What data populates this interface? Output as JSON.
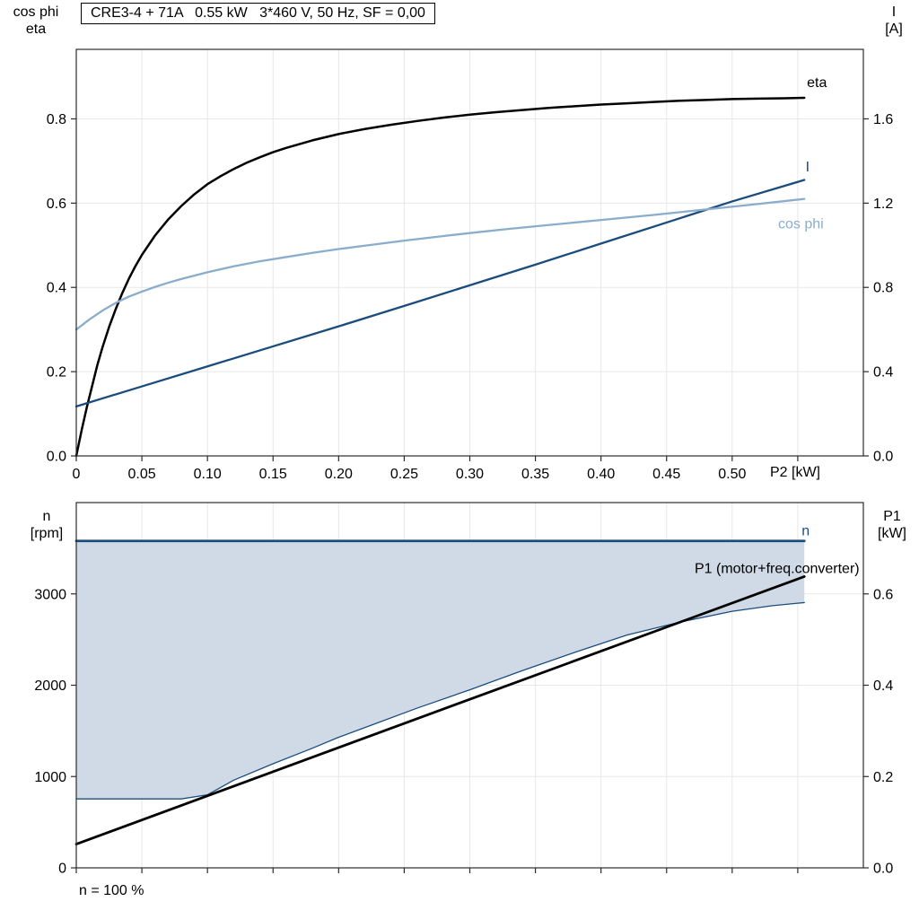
{
  "header": {
    "title_box": "CRE3-4 + 71A   0.55 kW   3*460 V, 50 Hz, SF = 0,00"
  },
  "axis_labels": {
    "top_left_line1": "cos phi",
    "top_left_line2": "eta",
    "top_right_line1": "I",
    "top_right_line2": "[A]",
    "bottom_left_line1": "n",
    "bottom_left_line2": "[rpm]",
    "bottom_right_line1": "P1",
    "bottom_right_line2": "[kW]",
    "x_axis": "P2 [kW]",
    "footnote": "n = 100 %"
  },
  "colors": {
    "black": "#000000",
    "dark_blue": "#1a4d7d",
    "light_blue": "#8aadcc",
    "fill": "#cfdae6",
    "grid": "#e7e7e7",
    "axis": "#2b2b2b"
  },
  "chart_data": [
    {
      "type": "line",
      "title": "CRE3-4 + 71A   0.55 kW   3*460 V, 50 Hz, SF = 0,00",
      "xlabel": "P2 [kW]",
      "xlim": [
        0,
        0.6
      ],
      "grid": true,
      "xticks": [
        {
          "v": 0,
          "label": "0"
        },
        {
          "v": 0.05,
          "label": "0.05"
        },
        {
          "v": 0.1,
          "label": "0.10"
        },
        {
          "v": 0.15,
          "label": "0.15"
        },
        {
          "v": 0.2,
          "label": "0.20"
        },
        {
          "v": 0.25,
          "label": "0.25"
        },
        {
          "v": 0.3,
          "label": "0.30"
        },
        {
          "v": 0.35,
          "label": "0.35"
        },
        {
          "v": 0.4,
          "label": "0.40"
        },
        {
          "v": 0.45,
          "label": "0.45"
        },
        {
          "v": 0.5,
          "label": "0.50"
        },
        {
          "v": 0.55,
          "label": ""
        }
      ],
      "left_axis": {
        "label": "cos phi / eta",
        "lim": [
          0,
          0.965
        ],
        "ticks": [
          {
            "v": 0.0,
            "label": "0.0"
          },
          {
            "v": 0.2,
            "label": "0.2"
          },
          {
            "v": 0.4,
            "label": "0.4"
          },
          {
            "v": 0.6,
            "label": "0.6"
          },
          {
            "v": 0.8,
            "label": "0.8"
          }
        ]
      },
      "right_axis": {
        "label": "I [A]",
        "lim": [
          0,
          1.93
        ],
        "ticks": [
          {
            "v": 0.0,
            "label": "0.0"
          },
          {
            "v": 0.4,
            "label": "0.4"
          },
          {
            "v": 0.8,
            "label": "0.8"
          },
          {
            "v": 1.2,
            "label": "1.2"
          },
          {
            "v": 1.6,
            "label": "1.6"
          }
        ]
      },
      "series": [
        {
          "name": "eta",
          "axis": "left",
          "color": "black",
          "width": 2.5,
          "label": {
            "text": "eta",
            "x": 0.557,
            "y": 0.875,
            "anchor": "start",
            "color": "black"
          },
          "points": [
            [
              0,
              0
            ],
            [
              0.004,
              0.06
            ],
            [
              0.008,
              0.115
            ],
            [
              0.012,
              0.165
            ],
            [
              0.016,
              0.215
            ],
            [
              0.02,
              0.258
            ],
            [
              0.025,
              0.306
            ],
            [
              0.03,
              0.348
            ],
            [
              0.035,
              0.386
            ],
            [
              0.04,
              0.42
            ],
            [
              0.045,
              0.45
            ],
            [
              0.05,
              0.477
            ],
            [
              0.06,
              0.523
            ],
            [
              0.07,
              0.561
            ],
            [
              0.08,
              0.593
            ],
            [
              0.09,
              0.621
            ],
            [
              0.1,
              0.645
            ],
            [
              0.11,
              0.664
            ],
            [
              0.12,
              0.681
            ],
            [
              0.13,
              0.696
            ],
            [
              0.14,
              0.709
            ],
            [
              0.15,
              0.721
            ],
            [
              0.16,
              0.731
            ],
            [
              0.18,
              0.749
            ],
            [
              0.2,
              0.764
            ],
            [
              0.22,
              0.776
            ],
            [
              0.24,
              0.786
            ],
            [
              0.26,
              0.795
            ],
            [
              0.28,
              0.803
            ],
            [
              0.3,
              0.81
            ],
            [
              0.32,
              0.816
            ],
            [
              0.34,
              0.821
            ],
            [
              0.36,
              0.826
            ],
            [
              0.38,
              0.83
            ],
            [
              0.4,
              0.834
            ],
            [
              0.42,
              0.837
            ],
            [
              0.44,
              0.84
            ],
            [
              0.46,
              0.843
            ],
            [
              0.48,
              0.845
            ],
            [
              0.5,
              0.847
            ],
            [
              0.52,
              0.848
            ],
            [
              0.54,
              0.849
            ],
            [
              0.555,
              0.85
            ]
          ]
        },
        {
          "name": "I",
          "axis": "right",
          "color": "dark_blue",
          "width": 2.3,
          "label": {
            "text": "I",
            "x": 0.556,
            "y": 1.35,
            "anchor": "start",
            "color": "dark_blue"
          },
          "points": [
            [
              0,
              0.235
            ],
            [
              0.05,
              0.33
            ],
            [
              0.1,
              0.425
            ],
            [
              0.15,
              0.52
            ],
            [
              0.2,
              0.615
            ],
            [
              0.25,
              0.712
            ],
            [
              0.3,
              0.81
            ],
            [
              0.35,
              0.908
            ],
            [
              0.4,
              1.008
            ],
            [
              0.45,
              1.108
            ],
            [
              0.5,
              1.208
            ],
            [
              0.555,
              1.31
            ]
          ]
        },
        {
          "name": "cos phi",
          "axis": "left",
          "color": "light_blue",
          "width": 2.3,
          "label": {
            "text": "cos phi",
            "x": 0.535,
            "y": 0.54,
            "anchor": "start",
            "color": "light_blue"
          },
          "points": [
            [
              0,
              0.3
            ],
            [
              0.01,
              0.324
            ],
            [
              0.02,
              0.345
            ],
            [
              0.03,
              0.363
            ],
            [
              0.04,
              0.378
            ],
            [
              0.05,
              0.39
            ],
            [
              0.06,
              0.401
            ],
            [
              0.07,
              0.411
            ],
            [
              0.08,
              0.42
            ],
            [
              0.09,
              0.428
            ],
            [
              0.1,
              0.436
            ],
            [
              0.12,
              0.45
            ],
            [
              0.14,
              0.462
            ],
            [
              0.16,
              0.472
            ],
            [
              0.18,
              0.482
            ],
            [
              0.2,
              0.491
            ],
            [
              0.22,
              0.499
            ],
            [
              0.25,
              0.511
            ],
            [
              0.28,
              0.522
            ],
            [
              0.3,
              0.529
            ],
            [
              0.33,
              0.539
            ],
            [
              0.36,
              0.548
            ],
            [
              0.4,
              0.56
            ],
            [
              0.44,
              0.572
            ],
            [
              0.48,
              0.585
            ],
            [
              0.52,
              0.598
            ],
            [
              0.555,
              0.61
            ]
          ]
        }
      ]
    },
    {
      "type": "line",
      "title": "speed range and input power",
      "xlabel": "P2 [kW]",
      "xlim": [
        0,
        0.6
      ],
      "grid": true,
      "xticks": [
        {
          "v": 0,
          "label": ""
        },
        {
          "v": 0.05,
          "label": ""
        },
        {
          "v": 0.1,
          "label": ""
        },
        {
          "v": 0.15,
          "label": ""
        },
        {
          "v": 0.2,
          "label": ""
        },
        {
          "v": 0.25,
          "label": ""
        },
        {
          "v": 0.3,
          "label": ""
        },
        {
          "v": 0.35,
          "label": ""
        },
        {
          "v": 0.4,
          "label": ""
        },
        {
          "v": 0.45,
          "label": ""
        },
        {
          "v": 0.5,
          "label": ""
        },
        {
          "v": 0.55,
          "label": ""
        }
      ],
      "left_axis": {
        "label": "n [rpm]",
        "lim": [
          0,
          4000
        ],
        "ticks": [
          {
            "v": 0,
            "label": "0"
          },
          {
            "v": 1000,
            "label": "1000"
          },
          {
            "v": 2000,
            "label": "2000"
          },
          {
            "v": 3000,
            "label": "3000"
          }
        ]
      },
      "right_axis": {
        "label": "P1 [kW]",
        "lim": [
          0,
          0.8
        ],
        "ticks": [
          {
            "v": 0.0,
            "label": "0.0"
          },
          {
            "v": 0.2,
            "label": "0.2"
          },
          {
            "v": 0.4,
            "label": "0.4"
          },
          {
            "v": 0.6,
            "label": "0.6"
          }
        ]
      },
      "fill_between": {
        "upper": "n",
        "lower": "n min",
        "color": "fill"
      },
      "series": [
        {
          "name": "n min",
          "axis": "left",
          "color": "dark_blue",
          "width": 1.3,
          "points": [
            [
              0,
              755
            ],
            [
              0.04,
              755
            ],
            [
              0.08,
              755
            ],
            [
              0.1,
              800
            ],
            [
              0.12,
              960
            ],
            [
              0.15,
              1140
            ],
            [
              0.18,
              1310
            ],
            [
              0.2,
              1430
            ],
            [
              0.23,
              1590
            ],
            [
              0.26,
              1750
            ],
            [
              0.3,
              1950
            ],
            [
              0.34,
              2160
            ],
            [
              0.38,
              2360
            ],
            [
              0.42,
              2550
            ],
            [
              0.46,
              2690
            ],
            [
              0.5,
              2810
            ],
            [
              0.53,
              2870
            ],
            [
              0.555,
              2905
            ]
          ]
        },
        {
          "name": "n",
          "axis": "left",
          "color": "dark_blue",
          "width": 2.8,
          "label": {
            "text": "n",
            "x": 0.553,
            "y": 3640,
            "anchor": "start",
            "color": "dark_blue"
          },
          "points": [
            [
              0,
              3580
            ],
            [
              0.555,
              3580
            ]
          ]
        },
        {
          "name": "P1",
          "axis": "right",
          "color": "black",
          "width": 2.8,
          "label": {
            "text": "P1 (motor+freq.converter)",
            "x": 0.597,
            "y": 0.646,
            "anchor": "end",
            "color": "black"
          },
          "points": [
            [
              0,
              0.052
            ],
            [
              0.28,
              0.348
            ],
            [
              0.555,
              0.638
            ]
          ]
        }
      ],
      "footnote": "n = 100 %"
    }
  ]
}
